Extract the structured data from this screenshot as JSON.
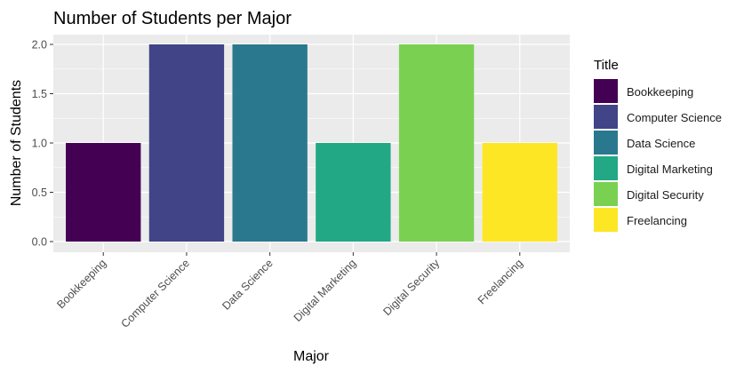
{
  "chart_data": {
    "type": "bar",
    "title": "Number of Students per Major",
    "xlabel": "Major",
    "ylabel": "Number of Students",
    "categories": [
      "Bookkeeping",
      "Computer Science",
      "Data Science",
      "Digital Marketing",
      "Digital Security",
      "Freelancing"
    ],
    "values": [
      1,
      2,
      2,
      1,
      2,
      1
    ],
    "colors": [
      "#440154",
      "#414487",
      "#2A788E",
      "#22A884",
      "#7AD151",
      "#FDE725"
    ],
    "ylim": [
      0,
      2
    ],
    "yticks": [
      0.0,
      0.5,
      1.0,
      1.5,
      2.0
    ],
    "ytick_labels": [
      "0.0",
      "0.5",
      "1.0",
      "1.5",
      "2.0"
    ],
    "grid": true,
    "panel_background": "#EBEBEB",
    "grid_color": "#FFFFFF",
    "legend": {
      "title": "Title",
      "position": "right",
      "entries": [
        "Bookkeeping",
        "Computer Science",
        "Data Science",
        "Digital Marketing",
        "Digital Security",
        "Freelancing"
      ]
    }
  }
}
